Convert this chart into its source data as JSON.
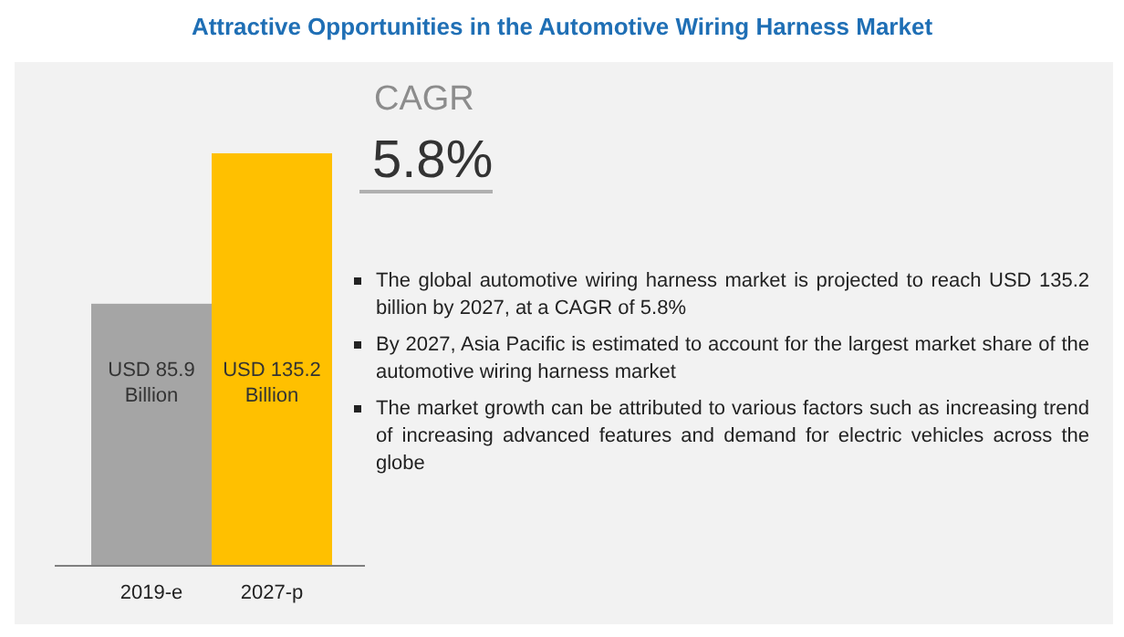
{
  "chart_data": {
    "type": "bar",
    "title": "Attractive Opportunities in the Automotive Wiring Harness Market",
    "categories": [
      "2019-e",
      "2027-p"
    ],
    "values": [
      85.9,
      135.2
    ],
    "colors": [
      "#a5a5a5",
      "#ffc000"
    ],
    "value_labels": [
      "USD 85.9 Billion",
      "USD 135.2 Billion"
    ],
    "annotations": [
      "CAGR",
      "5.8%",
      "The global automotive wiring harness market is projected to reach USD 135.2 billion by 2027, at a CAGR of 5.8%",
      "By 2027, Asia Pacific is estimated to account for the largest market share of the automotive wiring harness market",
      "The market growth can be attributed to various factors such as increasing trend of increasing advanced features and demand for electric vehicles across the globe"
    ]
  }
}
